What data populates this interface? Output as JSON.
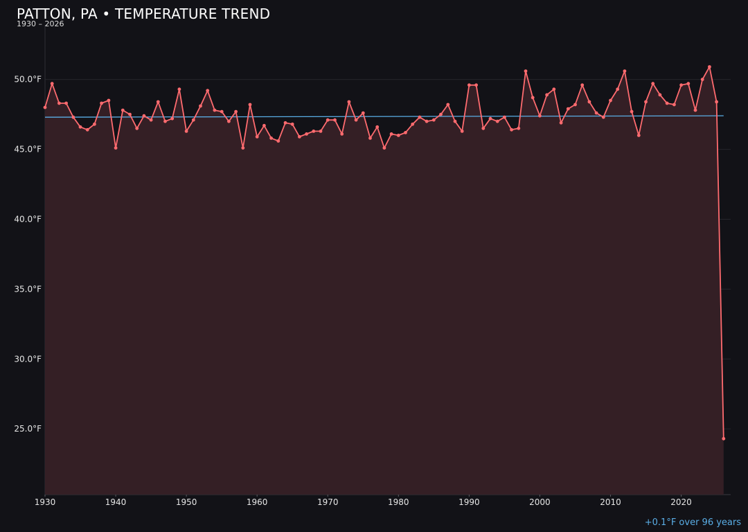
{
  "header": {
    "title": "PATTON, PA • TEMPERATURE TREND",
    "subtitle": "1930 – 2026"
  },
  "trend_note": "+0.1°F over 96 years",
  "colors": {
    "background": "#121217",
    "series_line": "#ff6b6f",
    "area_fill": "#341f25",
    "trend_line": "#5aaee6",
    "grid": "#26262c",
    "text": "#e6e6e6"
  },
  "chart_data": {
    "type": "line",
    "title": "PATTON, PA • TEMPERATURE TREND",
    "subtitle": "1930 – 2026",
    "xlabel": "",
    "ylabel": "",
    "x_ticks": [
      1930,
      1940,
      1950,
      1960,
      1970,
      1980,
      1990,
      2000,
      2010,
      2020
    ],
    "x_tick_labels": [
      "1930",
      "1940",
      "1950",
      "1960",
      "1970",
      "1980",
      "1990",
      "2000",
      "2010",
      "2020"
    ],
    "y_ticks": [
      25,
      30,
      35,
      40,
      45,
      50
    ],
    "y_tick_labels": [
      "25.0°F",
      "30.0°F",
      "35.0°F",
      "40.0°F",
      "45.0°F",
      "50.0°F"
    ],
    "xlim": [
      1930,
      2027
    ],
    "ylim": [
      20.3,
      53.9
    ],
    "grid": true,
    "area_fill": true,
    "series": [
      {
        "x": [
          1930,
          1931,
          1932,
          1933,
          1934,
          1935,
          1936,
          1937,
          1938,
          1939,
          1940,
          1941,
          1942,
          1943,
          1944,
          1945,
          1946,
          1947,
          1948,
          1949,
          1950,
          1951,
          1952,
          1953,
          1954,
          1955,
          1956,
          1957,
          1958,
          1959,
          1960,
          1961,
          1962,
          1963,
          1964,
          1965,
          1966,
          1967,
          1968,
          1969,
          1970,
          1971,
          1972,
          1973,
          1974,
          1975,
          1976,
          1977,
          1978,
          1979,
          1980,
          1981,
          1982,
          1983,
          1984,
          1985,
          1986,
          1987,
          1988,
          1989,
          1990,
          1991,
          1992,
          1993,
          1994,
          1995,
          1996,
          1997,
          1998,
          1999,
          2000,
          2001,
          2002,
          2003,
          2004,
          2005,
          2006,
          2007,
          2008,
          2009,
          2010,
          2011,
          2012,
          2013,
          2014,
          2015,
          2016,
          2017,
          2018,
          2019,
          2020,
          2021,
          2022,
          2023,
          2024,
          2025,
          2026
        ],
        "values": [
          48.0,
          49.7,
          48.3,
          48.3,
          47.3,
          46.6,
          46.4,
          46.8,
          48.3,
          48.5,
          45.1,
          47.8,
          47.5,
          46.5,
          47.4,
          47.1,
          48.4,
          47.0,
          47.2,
          49.3,
          46.3,
          47.1,
          48.1,
          49.2,
          47.8,
          47.7,
          47.0,
          47.7,
          45.1,
          48.2,
          45.9,
          46.7,
          45.8,
          45.6,
          46.9,
          46.8,
          45.9,
          46.1,
          46.3,
          46.3,
          47.1,
          47.1,
          46.1,
          48.4,
          47.1,
          47.6,
          45.8,
          46.6,
          45.1,
          46.1,
          46.0,
          46.2,
          46.8,
          47.3,
          47.0,
          47.1,
          47.5,
          48.2,
          47.0,
          46.3,
          49.6,
          49.6,
          46.5,
          47.2,
          47.0,
          47.3,
          46.4,
          46.5,
          50.6,
          48.7,
          47.4,
          48.9,
          49.3,
          46.9,
          47.9,
          48.2,
          49.6,
          48.4,
          47.6,
          47.3,
          48.5,
          49.3,
          50.6,
          47.7,
          46.0,
          48.4,
          49.7,
          48.9,
          48.3,
          48.2,
          49.6,
          49.7,
          47.8,
          50.0,
          50.9,
          48.4,
          24.3
        ]
      }
    ],
    "trend": {
      "x": [
        1930,
        2026
      ],
      "y": [
        47.3,
        47.4
      ]
    }
  }
}
